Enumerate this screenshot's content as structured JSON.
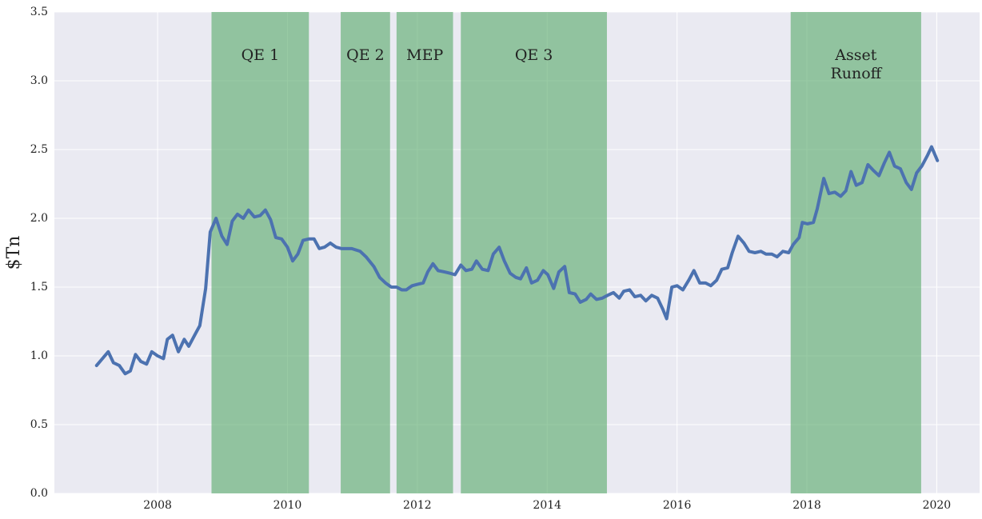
{
  "chart_data": {
    "type": "line",
    "ylabel": "$Tn",
    "xlim": [
      2006.41,
      2020.66
    ],
    "xticks": [
      2008,
      2010,
      2012,
      2014,
      2016,
      2018,
      2020
    ],
    "ylim": [
      0,
      3.5
    ],
    "yticks": [
      {
        "value": 0,
        "label": "0.0"
      },
      0.5,
      {
        "value": 1,
        "label": "1.0"
      },
      1.5,
      {
        "value": 2,
        "label": "2.0"
      },
      2.5,
      {
        "value": 3,
        "label": "3.0"
      },
      3.5
    ],
    "grid": true,
    "background": "#eaeaf2",
    "spans": [
      {
        "label": [
          "QE 1"
        ],
        "start": 2008.83,
        "end": 2010.33
      },
      {
        "label": [
          "QE 2"
        ],
        "start": 2010.82,
        "end": 2011.58
      },
      {
        "label": [
          "MEP"
        ],
        "start": 2011.68,
        "end": 2012.55
      },
      {
        "label": [
          "QE 3"
        ],
        "start": 2012.67,
        "end": 2014.92
      },
      {
        "label": [
          "Asset",
          "Runoff"
        ],
        "start": 2017.75,
        "end": 2019.76
      }
    ],
    "span_color": "#55a868",
    "series": [
      {
        "color": "#4c72b0",
        "x": [
          2007.06,
          2007.24,
          2007.32,
          2007.41,
          2007.5,
          2007.58,
          2007.66,
          2007.74,
          2007.83,
          2007.91,
          2008.0,
          2008.09,
          2008.15,
          2008.23,
          2008.32,
          2008.41,
          2008.48,
          2008.57,
          2008.65,
          2008.74,
          2008.81,
          2008.9,
          2008.99,
          2009.07,
          2009.15,
          2009.23,
          2009.32,
          2009.4,
          2009.49,
          2009.58,
          2009.66,
          2009.74,
          2009.82,
          2009.91,
          2010.0,
          2010.08,
          2010.16,
          2010.24,
          2010.33,
          2010.41,
          2010.49,
          2010.57,
          2010.66,
          2010.75,
          2010.83,
          2010.99,
          2011.12,
          2011.21,
          2011.33,
          2011.42,
          2011.51,
          2011.6,
          2011.68,
          2011.76,
          2011.83,
          2011.92,
          2012.0,
          2012.09,
          2012.16,
          2012.24,
          2012.32,
          2012.42,
          2012.51,
          2012.58,
          2012.67,
          2012.75,
          2012.84,
          2012.91,
          2013.0,
          2013.09,
          2013.17,
          2013.26,
          2013.34,
          2013.43,
          2013.52,
          2013.59,
          2013.68,
          2013.76,
          2013.85,
          2013.94,
          2014.01,
          2014.1,
          2014.18,
          2014.27,
          2014.34,
          2014.43,
          2014.51,
          2014.6,
          2014.67,
          2014.76,
          2014.85,
          2014.93,
          2015.02,
          2015.11,
          2015.18,
          2015.27,
          2015.35,
          2015.44,
          2015.52,
          2015.61,
          2015.7,
          2015.78,
          2015.84,
          2015.92,
          2016.0,
          2016.09,
          2016.18,
          2016.26,
          2016.35,
          2016.44,
          2016.52,
          2016.61,
          2016.69,
          2016.78,
          2016.85,
          2016.94,
          2017.03,
          2017.11,
          2017.2,
          2017.29,
          2017.37,
          2017.46,
          2017.54,
          2017.63,
          2017.72,
          2017.79,
          2017.88,
          2017.93,
          2018.01,
          2018.1,
          2018.16,
          2018.26,
          2018.34,
          2018.43,
          2018.52,
          2018.6,
          2018.68,
          2018.76,
          2018.85,
          2018.94,
          2019.02,
          2019.11,
          2019.19,
          2019.27,
          2019.35,
          2019.44,
          2019.53,
          2019.61,
          2019.69,
          2019.77,
          2019.86,
          2019.92,
          2020.01
        ],
        "values": [
          0.93,
          1.03,
          0.95,
          0.93,
          0.87,
          0.89,
          1.01,
          0.96,
          0.94,
          1.03,
          1.0,
          0.98,
          1.12,
          1.15,
          1.03,
          1.12,
          1.07,
          1.15,
          1.22,
          1.49,
          1.9,
          2.0,
          1.87,
          1.81,
          1.98,
          2.03,
          2.0,
          2.06,
          2.01,
          2.02,
          2.06,
          1.99,
          1.86,
          1.85,
          1.79,
          1.69,
          1.74,
          1.84,
          1.85,
          1.85,
          1.78,
          1.79,
          1.82,
          1.79,
          1.78,
          1.78,
          1.76,
          1.72,
          1.65,
          1.57,
          1.53,
          1.5,
          1.5,
          1.48,
          1.48,
          1.51,
          1.52,
          1.53,
          1.61,
          1.67,
          1.62,
          1.61,
          1.6,
          1.59,
          1.66,
          1.62,
          1.63,
          1.69,
          1.63,
          1.62,
          1.74,
          1.79,
          1.69,
          1.6,
          1.57,
          1.56,
          1.64,
          1.53,
          1.55,
          1.62,
          1.59,
          1.49,
          1.61,
          1.65,
          1.46,
          1.45,
          1.39,
          1.41,
          1.45,
          1.41,
          1.42,
          1.44,
          1.46,
          1.42,
          1.47,
          1.48,
          1.43,
          1.44,
          1.4,
          1.44,
          1.42,
          1.34,
          1.27,
          1.5,
          1.51,
          1.48,
          1.55,
          1.62,
          1.53,
          1.53,
          1.51,
          1.55,
          1.63,
          1.64,
          1.75,
          1.87,
          1.82,
          1.76,
          1.75,
          1.76,
          1.74,
          1.74,
          1.72,
          1.76,
          1.75,
          1.81,
          1.86,
          1.97,
          1.96,
          1.97,
          2.07,
          2.29,
          2.18,
          2.19,
          2.16,
          2.2,
          2.34,
          2.24,
          2.26,
          2.39,
          2.35,
          2.31,
          2.4,
          2.48,
          2.38,
          2.36,
          2.26,
          2.21,
          2.33,
          2.38,
          2.46,
          2.52,
          2.42
        ]
      }
    ]
  }
}
